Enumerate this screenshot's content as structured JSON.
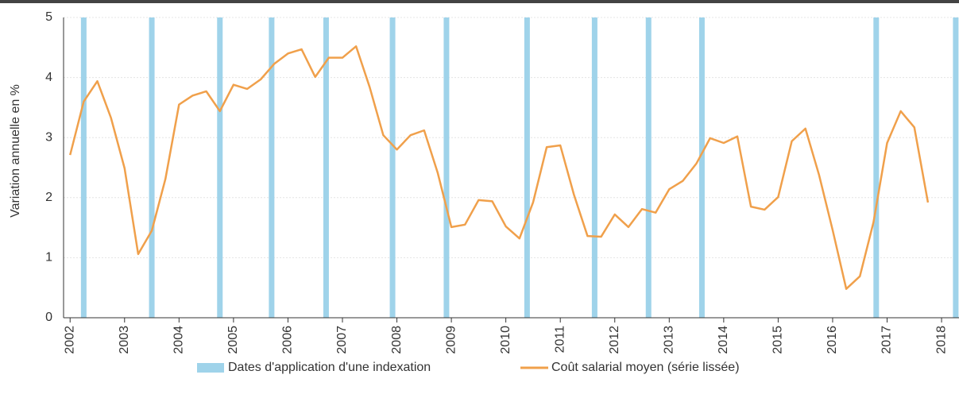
{
  "chart_data": {
    "type": "line",
    "y_label": "Variation annuelle en %",
    "xlim": [
      2001.88,
      2018.32
    ],
    "xticks": [
      2002,
      2003,
      2004,
      2005,
      2006,
      2007,
      2008,
      2009,
      2010,
      2011,
      2012,
      2013,
      2014,
      2015,
      2016,
      2017,
      2018
    ],
    "ylim": [
      0,
      5
    ],
    "yticks": [
      0,
      1,
      2,
      3,
      4,
      5
    ],
    "grid": true,
    "legend": "bottom",
    "events": {
      "name": "Dates d'application d'une indexation",
      "color": "#9fd3ea",
      "x": [
        2002.25,
        2003.5,
        2004.75,
        2005.7,
        2006.7,
        2007.92,
        2008.91,
        2010.39,
        2011.63,
        2012.62,
        2013.6,
        2016.8,
        2018.26
      ]
    },
    "series": [
      {
        "name": "Coût salarial moyen (série lissée)",
        "color": "#f0a04b",
        "x": [
          2002,
          2002.25,
          2002.5,
          2002.75,
          2003,
          2003.25,
          2003.5,
          2003.75,
          2004,
          2004.25,
          2004.5,
          2004.75,
          2005,
          2005.25,
          2005.5,
          2005.75,
          2006,
          2006.25,
          2006.5,
          2006.75,
          2007,
          2007.25,
          2007.5,
          2007.75,
          2008,
          2008.25,
          2008.5,
          2008.75,
          2009,
          2009.25,
          2009.5,
          2009.75,
          2010,
          2010.25,
          2010.5,
          2010.75,
          2011,
          2011.25,
          2011.5,
          2011.75,
          2012,
          2012.25,
          2012.5,
          2012.75,
          2013,
          2013.25,
          2013.5,
          2013.75,
          2014,
          2014.25,
          2014.5,
          2014.75,
          2015,
          2015.25,
          2015.5,
          2015.75,
          2016,
          2016.25,
          2016.5,
          2016.75,
          2017,
          2017.25,
          2017.5,
          2017.75
        ],
        "values": [
          2.71,
          3.6,
          3.94,
          3.33,
          2.49,
          1.06,
          1.45,
          2.31,
          3.55,
          3.7,
          3.77,
          3.44,
          3.88,
          3.81,
          3.97,
          4.23,
          4.4,
          4.47,
          4.01,
          4.33,
          4.33,
          4.52,
          3.84,
          3.04,
          2.8,
          3.04,
          3.12,
          2.41,
          1.51,
          1.55,
          1.96,
          1.94,
          1.52,
          1.32,
          1.92,
          2.84,
          2.87,
          2.05,
          1.36,
          1.35,
          1.72,
          1.51,
          1.81,
          1.75,
          2.14,
          2.28,
          2.57,
          2.99,
          2.91,
          3.02,
          1.85,
          1.8,
          2.01,
          2.94,
          3.15,
          2.38,
          1.46,
          0.48,
          0.69,
          1.59,
          2.91,
          3.44,
          3.17,
          1.92
        ]
      }
    ]
  }
}
